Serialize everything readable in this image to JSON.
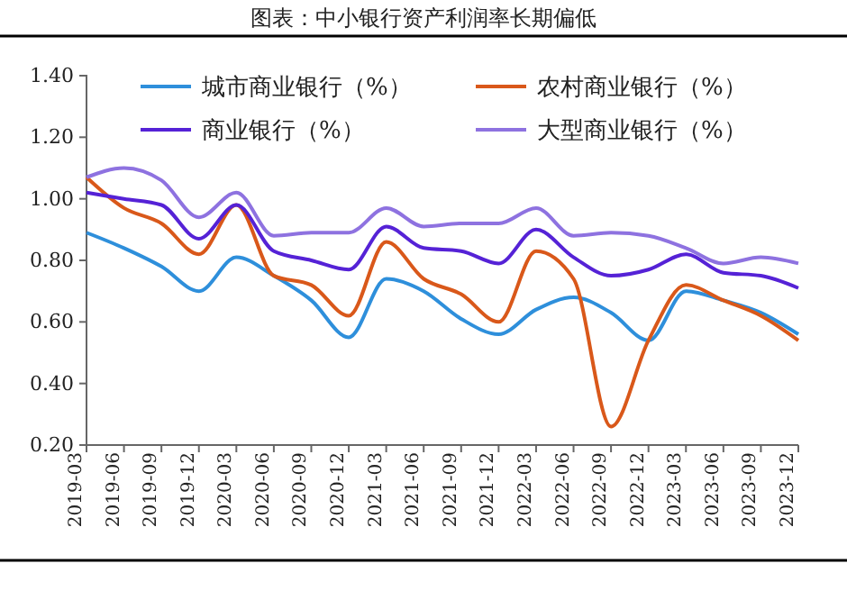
{
  "chart_data": {
    "type": "line",
    "title": "图表：中小银行资产利润率长期偏低",
    "categories": [
      "2019-03",
      "2019-06",
      "2019-09",
      "2019-12",
      "2020-03",
      "2020-06",
      "2020-09",
      "2020-12",
      "2021-03",
      "2021-06",
      "2021-09",
      "2021-12",
      "2022-03",
      "2022-06",
      "2022-09",
      "2022-12",
      "2023-03",
      "2023-06",
      "2023-09",
      "2023-12"
    ],
    "series": [
      {
        "name": "城市商业银行（%）",
        "color": "#2e8fdb",
        "values": [
          0.89,
          0.84,
          0.78,
          0.7,
          0.81,
          0.75,
          0.67,
          0.55,
          0.74,
          0.7,
          0.61,
          0.56,
          0.64,
          0.68,
          0.63,
          0.54,
          0.7,
          0.67,
          0.63,
          0.56
        ]
      },
      {
        "name": "农村商业银行（%）",
        "color": "#d9581a",
        "values": [
          1.07,
          0.97,
          0.92,
          0.82,
          0.98,
          0.75,
          0.72,
          0.62,
          0.86,
          0.74,
          0.69,
          0.6,
          0.83,
          0.74,
          0.26,
          0.54,
          0.72,
          0.67,
          0.62,
          0.54
        ]
      },
      {
        "name": "商业银行（%）",
        "color": "#5522d6",
        "values": [
          1.02,
          1.0,
          0.98,
          0.87,
          0.98,
          0.83,
          0.8,
          0.77,
          0.91,
          0.84,
          0.83,
          0.79,
          0.9,
          0.81,
          0.75,
          0.77,
          0.82,
          0.76,
          0.75,
          0.71
        ]
      },
      {
        "name": "大型商业银行（%）",
        "color": "#8e72e0",
        "values": [
          1.07,
          1.1,
          1.06,
          0.94,
          1.02,
          0.88,
          0.89,
          0.89,
          0.97,
          0.91,
          0.92,
          0.92,
          0.97,
          0.88,
          0.89,
          0.88,
          0.84,
          0.79,
          0.81,
          0.79
        ]
      }
    ],
    "ylim": [
      0.2,
      1.4
    ],
    "yticks": [
      {
        "value": 0.2,
        "label": "0.20"
      },
      {
        "value": 0.4,
        "label": "0.40"
      },
      {
        "value": 0.6,
        "label": "0.60"
      },
      {
        "value": 0.8,
        "label": "0.80"
      },
      {
        "value": 1.0,
        "label": "1.00"
      },
      {
        "value": 1.2,
        "label": "1.20"
      },
      {
        "value": 1.4,
        "label": "1.40"
      }
    ],
    "grid": false,
    "legend": "top",
    "marker": "none",
    "line_style": "solid"
  }
}
